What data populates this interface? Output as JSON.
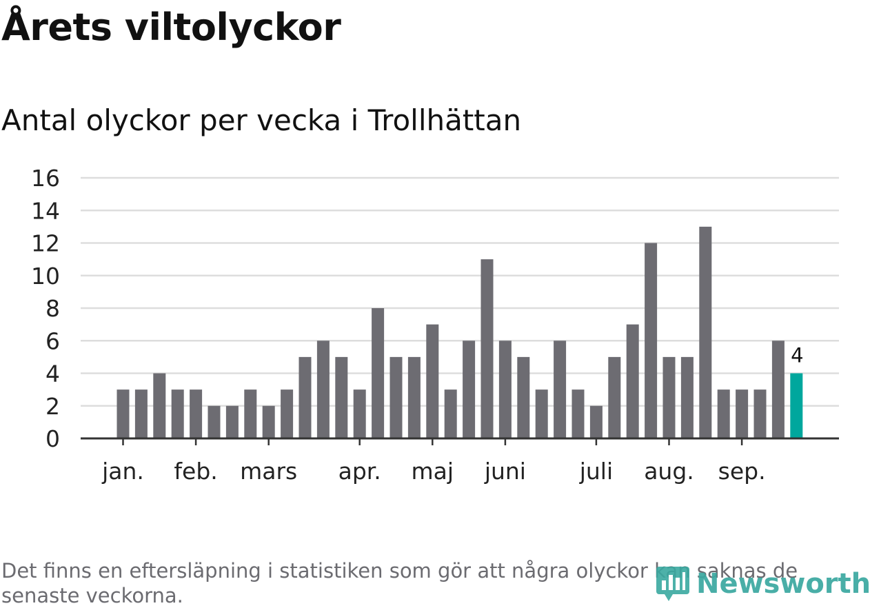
{
  "title": "Årets viltolyckor",
  "subtitle": "Antal olyckor per vecka i Trollhättan",
  "footnote": "Det finns en eftersläpning i statistiken som gör att några olyckor kan saknas de senaste veckorna.",
  "brand": {
    "name": "Newsworthy",
    "color": "#3aa8a0"
  },
  "colors": {
    "bar": "#6d6c72",
    "highlight": "#00a79d",
    "grid": "#dddddd",
    "axis": "#333333"
  },
  "chart_data": {
    "type": "bar",
    "title": "Antal olyckor per vecka i Trollhättan",
    "xlabel": "",
    "ylabel": "",
    "ylim": [
      0,
      16
    ],
    "yticks": [
      "0",
      "2",
      "4",
      "6",
      "8",
      "10",
      "12",
      "14",
      "16"
    ],
    "values": [
      3,
      3,
      4,
      3,
      3,
      2,
      2,
      3,
      2,
      3,
      5,
      6,
      5,
      3,
      8,
      5,
      5,
      7,
      3,
      6,
      11,
      6,
      5,
      3,
      6,
      3,
      2,
      5,
      7,
      12,
      5,
      5,
      13,
      3,
      3,
      3,
      6,
      4
    ],
    "highlight_index": 37,
    "highlight_label": "4",
    "month_labels": [
      {
        "label": "jan.",
        "bar_index": 0
      },
      {
        "label": "feb.",
        "bar_index": 4
      },
      {
        "label": "mars",
        "bar_index": 8
      },
      {
        "label": "apr.",
        "bar_index": 13
      },
      {
        "label": "maj",
        "bar_index": 17
      },
      {
        "label": "juni",
        "bar_index": 21
      },
      {
        "label": "juli",
        "bar_index": 26
      },
      {
        "label": "aug.",
        "bar_index": 30
      },
      {
        "label": "sep.",
        "bar_index": 34
      }
    ],
    "grid": true
  }
}
